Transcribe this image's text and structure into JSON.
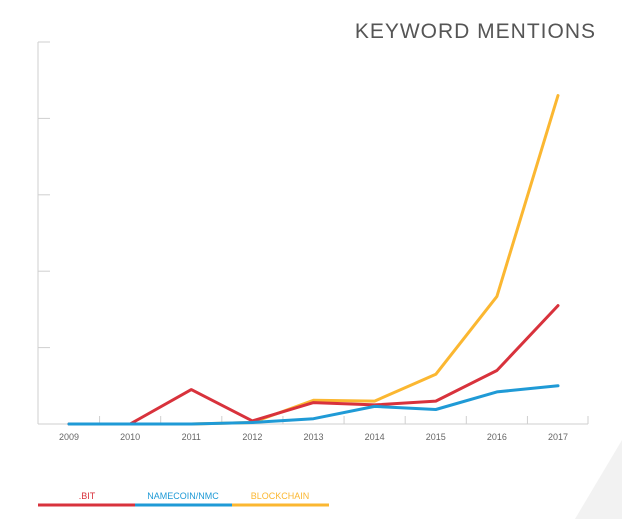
{
  "chart_data": {
    "type": "line",
    "title": "KEYWORD MENTIONS",
    "xlabel": "",
    "ylabel": "",
    "x": [
      "2009",
      "2010",
      "2011",
      "2012",
      "2013",
      "2014",
      "2015",
      "2016",
      "2017"
    ],
    "ylim": [
      0,
      5
    ],
    "y_tick_count": 5,
    "y_tick_labels_shown": false,
    "grid": false,
    "legend_position": "bottom-left",
    "series": [
      {
        "name": ".BIT",
        "color": "#d8323c",
        "values": [
          0,
          0,
          0.45,
          0.04,
          0.28,
          0.25,
          0.3,
          0.7,
          1.55
        ]
      },
      {
        "name": "NAMECOIN/NMC",
        "color": "#1f9ad6",
        "values": [
          0,
          0,
          0,
          0.02,
          0.07,
          0.23,
          0.19,
          0.42,
          0.5
        ]
      },
      {
        "name": "BLOCKCHAIN",
        "color": "#fbb731",
        "values": [
          0,
          0,
          0,
          0.02,
          0.31,
          0.3,
          0.65,
          1.67,
          4.3
        ]
      }
    ]
  }
}
